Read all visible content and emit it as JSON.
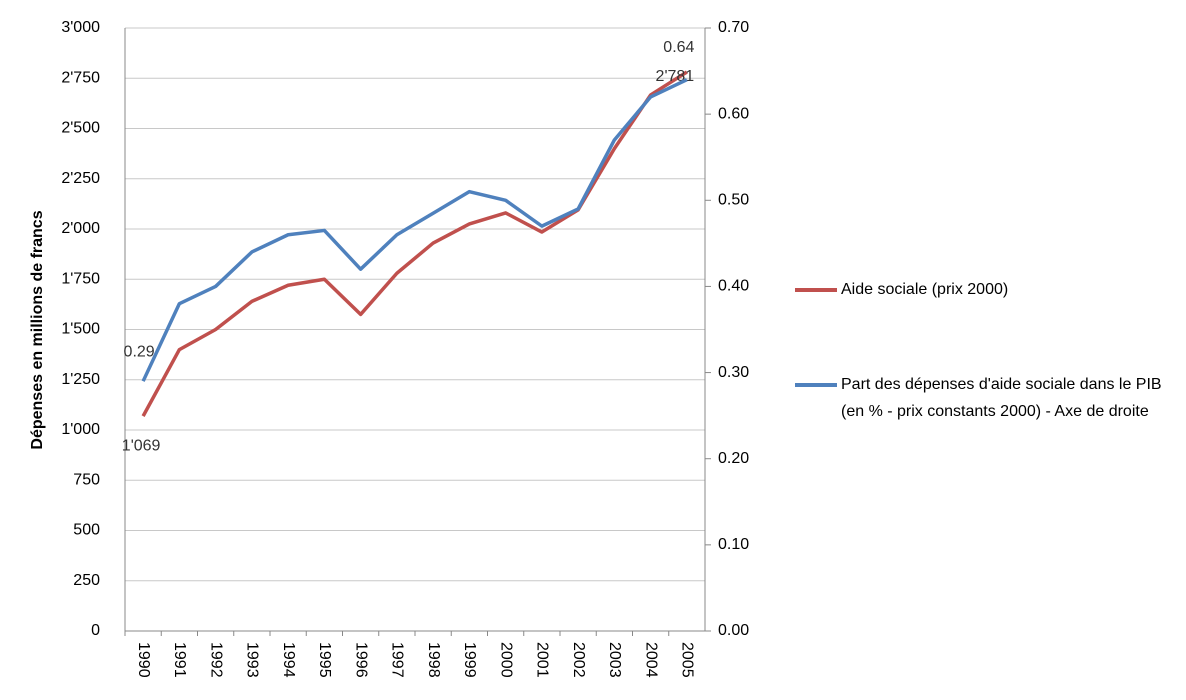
{
  "chart_data": {
    "type": "line",
    "y_label": "Dépenses en millions de francs",
    "categories": [
      "1990",
      "1991",
      "1992",
      "1993",
      "1994",
      "1995",
      "1996",
      "1997",
      "1998",
      "1999",
      "2000",
      "2001",
      "2002",
      "2003",
      "2004",
      "2005"
    ],
    "series": [
      {
        "name": "Aide sociale (prix 2000)",
        "color": "#c0504d",
        "values": [
          1069,
          1400,
          1500,
          1640,
          1720,
          1750,
          1575,
          1780,
          1930,
          2025,
          2080,
          1985,
          2095,
          2400,
          2667,
          2781
        ],
        "value_labels": [
          "1'069",
          null,
          null,
          null,
          null,
          null,
          null,
          null,
          null,
          null,
          null,
          null,
          null,
          null,
          null,
          "2'781"
        ]
      },
      {
        "name": "Part des dépenses d'aide sociale dans le PIB (en % - prix constants 2000) - Axe de droite",
        "color": "#4f81bd",
        "axis": "y2",
        "values": [
          0.29,
          0.38,
          0.4,
          0.44,
          0.46,
          0.465,
          0.42,
          0.46,
          0.485,
          0.51,
          0.5,
          0.47,
          0.49,
          0.57,
          0.62,
          0.64
        ],
        "value_labels": [
          "0.29",
          null,
          null,
          null,
          null,
          null,
          null,
          null,
          null,
          null,
          null,
          null,
          null,
          null,
          null,
          "0.64"
        ]
      }
    ],
    "ylim": [
      0,
      3000
    ],
    "yticks": [
      0,
      250,
      500,
      750,
      {
        "value": 1000,
        "label": "1'000"
      },
      {
        "value": 1250,
        "label": "1'250"
      },
      {
        "value": 1500,
        "label": "1'500"
      },
      {
        "value": 1750,
        "label": "1'750"
      },
      {
        "value": 2000,
        "label": "2'000"
      },
      {
        "value": 2250,
        "label": "2'250"
      },
      {
        "value": 2500,
        "label": "2'500"
      },
      {
        "value": 2750,
        "label": "2'750"
      },
      {
        "value": 3000,
        "label": "3'000"
      }
    ],
    "y2lim": [
      0,
      0.7
    ],
    "y2ticks": [
      {
        "value": 0,
        "label": "0.00"
      },
      {
        "value": 0.1,
        "label": "0.10"
      },
      {
        "value": 0.2,
        "label": "0.20"
      },
      {
        "value": 0.3,
        "label": "0.30"
      },
      {
        "value": 0.4,
        "label": "0.40"
      },
      {
        "value": 0.5,
        "label": "0.50"
      },
      {
        "value": 0.6,
        "label": "0.60"
      },
      {
        "value": 0.7,
        "label": "0.70"
      }
    ],
    "grid": true,
    "legend": "right"
  }
}
